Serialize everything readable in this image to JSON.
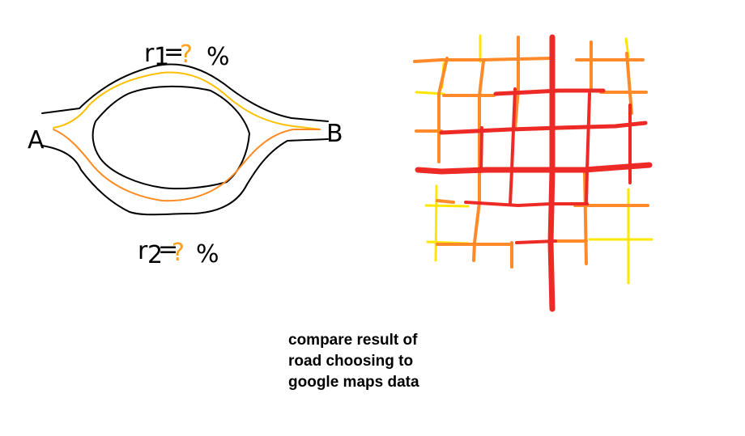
{
  "left_diagram": {
    "label_a": "A",
    "label_b": "B",
    "route_1_label": {
      "prefix": "r",
      "sub": "1",
      "eq": "=",
      "unknown": "?",
      "unit": "%"
    },
    "route_2_label": {
      "prefix": "r",
      "sub": "2",
      "eq": "=",
      "unknown": "?",
      "unit": "%"
    },
    "colors": {
      "route_1": "#ffc000",
      "route_2": "#ff8a20",
      "outline": "#000000",
      "unknown_mark": "#ff9f1a"
    }
  },
  "grid_map": {
    "colors": {
      "major": "#ee2a26",
      "medium": "#ff8a2a",
      "minor": "#ffe600"
    }
  },
  "caption": {
    "line1": "compare result of",
    "line2": "road choosing to",
    "line3": "google maps data"
  }
}
